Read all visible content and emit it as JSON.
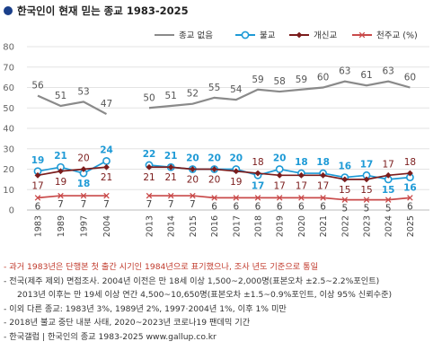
{
  "title": "한국인이 현재 믿는 종교 1983-2025",
  "chart_data": {
    "type": "line",
    "title": "한국인이 현재 믿는 종교 1983-2025",
    "categories": [
      "1983",
      "1989",
      "1997",
      "2004",
      "2013",
      "2014",
      "2015",
      "2016",
      "2017",
      "2018",
      "2019",
      "2020",
      "2021",
      "2022",
      "2023",
      "2024",
      "2025"
    ],
    "ylim": [
      0,
      80
    ],
    "yticks": [
      0,
      10,
      20,
      30,
      40,
      50,
      60,
      70,
      80
    ],
    "grid": true,
    "legend": "top",
    "series": [
      {
        "name": "종교 없음",
        "color": "#8a8a8a",
        "marker": "none",
        "values": [
          56,
          51,
          53,
          47,
          50,
          51,
          52,
          55,
          54,
          59,
          58,
          59,
          60,
          63,
          61,
          63,
          60
        ]
      },
      {
        "name": "불교",
        "color": "#1e9ad6",
        "marker": "circle",
        "values": [
          19,
          21,
          18,
          24,
          22,
          21,
          20,
          20,
          20,
          17,
          20,
          18,
          18,
          16,
          17,
          15,
          16
        ]
      },
      {
        "name": "개신교",
        "color": "#7b1c1c",
        "marker": "diamond",
        "values": [
          17,
          19,
          20,
          21,
          21,
          21,
          20,
          20,
          19,
          18,
          17,
          17,
          17,
          15,
          15,
          17,
          18
        ]
      },
      {
        "name": "천주교 (%)",
        "color": "#c94a4a",
        "marker": "x",
        "values": [
          6,
          7,
          7,
          7,
          7,
          7,
          7,
          6,
          6,
          6,
          6,
          6,
          6,
          5,
          5,
          5,
          6
        ]
      }
    ]
  },
  "notes": [
    "- 과거 1983년은 단행본 첫 출간 시기인 1984년으로 표기했으나, 조사 년도 기준으로 통일",
    "- 전국(제주 제외) 면접조사. 2004년 이전은 만 18세 이상 1,500~2,000명(표본오차 ±2.5~2.2%포인트)",
    "2013년 이후는 만 19세 이상 연간 4,500~10,650명(표본오차 ±1.5~0.9%포인트, 이상 95% 신뢰수준)",
    "- 이외 다른 종교: 1983년 3%, 1989년 2%, 1997·2004년 1%, 이후 1% 미만",
    "- 2018년 불교 중단 내분 사태, 2020~2023년 코로나19 팬데믹 기간"
  ],
  "source": "- 한국갤럽 | 한국인의 종교 1983-2025 www.gallup.co.kr"
}
